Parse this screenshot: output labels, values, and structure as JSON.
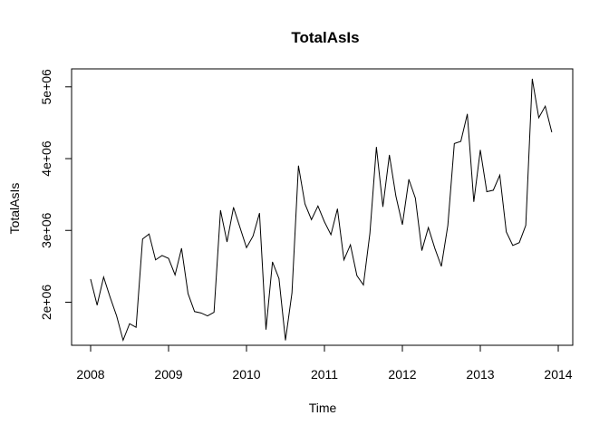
{
  "chart_data": {
    "type": "line",
    "title": "TotalAsIs",
    "xlabel": "Time",
    "ylabel": "TotalAsIs",
    "xlim": [
      2008,
      2014
    ],
    "ylim": [
      1400000,
      5250000
    ],
    "x_ticks": [
      2008,
      2009,
      2010,
      2011,
      2012,
      2013,
      2014
    ],
    "x_tick_labels": [
      "2008",
      "2009",
      "2010",
      "2011",
      "2012",
      "2013",
      "2014"
    ],
    "y_ticks": [
      2000000,
      3000000,
      4000000,
      5000000
    ],
    "y_tick_labels": [
      "2e+06",
      "3e+06",
      "4e+06",
      "5e+06"
    ],
    "grid": false,
    "frequency": 12,
    "start": 2008,
    "series": [
      {
        "values": [
          2320000,
          1960000,
          2350000,
          2070000,
          1810000,
          1470000,
          1700000,
          1650000,
          2880000,
          2950000,
          2590000,
          2650000,
          2610000,
          2380000,
          2750000,
          2120000,
          1870000,
          1850000,
          1810000,
          1860000,
          3280000,
          2840000,
          3320000,
          3040000,
          2760000,
          2920000,
          3240000,
          1620000,
          2560000,
          2330000,
          1470000,
          2130000,
          3900000,
          3370000,
          3150000,
          3340000,
          3120000,
          2940000,
          3300000,
          2590000,
          2800000,
          2370000,
          2240000,
          2960000,
          4160000,
          3330000,
          4050000,
          3480000,
          3080000,
          3710000,
          3450000,
          2720000,
          3040000,
          2750000,
          2500000,
          3070000,
          4210000,
          4240000,
          4620000,
          3400000,
          4120000,
          3540000,
          3560000,
          3770000,
          2980000,
          2790000,
          2830000,
          3070000,
          5110000,
          4570000,
          4730000,
          4370000
        ]
      }
    ]
  }
}
